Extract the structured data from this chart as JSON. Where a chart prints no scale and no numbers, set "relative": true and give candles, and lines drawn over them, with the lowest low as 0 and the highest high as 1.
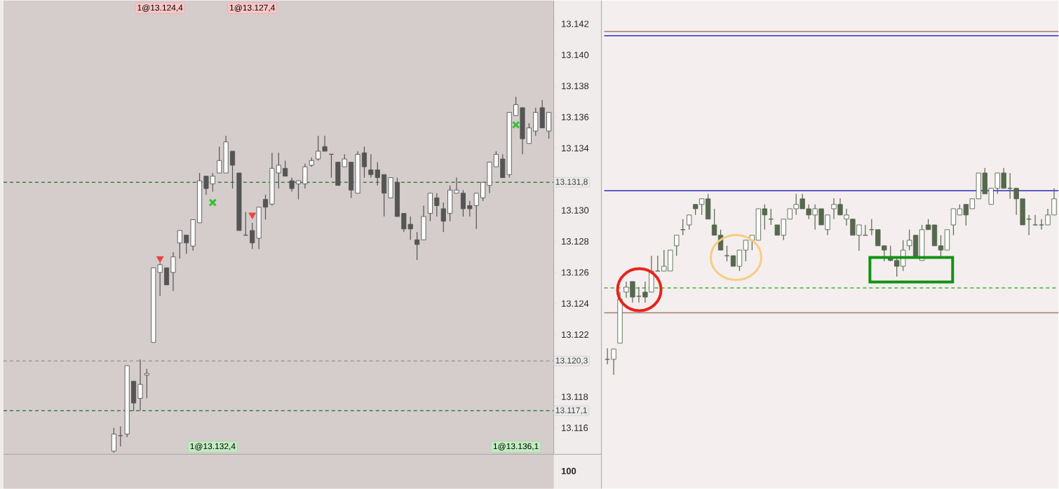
{
  "chart_data": [
    {
      "type": "candlestick",
      "color": "#555555",
      "categories": [
        null,
        null,
        null,
        null,
        null,
        null,
        null,
        null,
        null,
        null,
        null,
        null,
        null,
        null,
        null,
        null,
        null,
        null,
        null,
        null,
        null,
        null,
        null,
        null,
        null,
        null,
        null,
        null,
        null,
        null,
        null,
        null,
        null,
        null,
        null,
        null,
        null,
        null,
        null,
        null,
        null,
        null,
        null,
        null,
        null,
        null,
        null,
        null,
        null,
        null,
        null,
        null,
        null,
        null,
        null,
        null,
        null,
        null,
        null,
        null,
        null,
        null,
        null,
        null,
        null,
        null,
        null
      ],
      "ohlc": [
        [
          13114.5,
          13116.0,
          13114.4,
          13115.6
        ],
        [
          13115.5,
          13116.1,
          13114.8,
          13115.5
        ],
        [
          13115.6,
          13120.0,
          13115.4,
          13120.0
        ],
        [
          13119.0,
          13119.0,
          13117.1,
          13117.6
        ],
        [
          13117.9,
          13120.4,
          13117.1,
          13118.8
        ],
        [
          13119.4,
          13119.8,
          13117.9,
          13119.5
        ],
        [
          13121.5,
          13126.3,
          13121.5,
          13126.3
        ],
        [
          13126.0,
          13126.6,
          13124.5,
          13126.5
        ],
        [
          13126.3,
          13126.3,
          13125.2,
          13125.2
        ],
        [
          13126.0,
          13127.3,
          13124.8,
          13127.0
        ],
        [
          13127.9,
          13128.7,
          13126.9,
          13128.7
        ],
        [
          13128.4,
          13128.4,
          13127.2,
          13127.9
        ],
        [
          13127.7,
          13129.4,
          13127.4,
          13129.4
        ],
        [
          13129.2,
          13132.4,
          13129.2,
          13131.9
        ],
        [
          13132.2,
          13132.2,
          13131.0,
          13131.4
        ],
        [
          13131.7,
          13132.4,
          13131.2,
          13132.2
        ],
        [
          13132.4,
          13134.1,
          13132.4,
          13133.2
        ],
        [
          13132.4,
          13134.8,
          13132.4,
          13134.4
        ],
        [
          13133.8,
          13133.8,
          13131.4,
          13132.9
        ],
        [
          13132.4,
          13132.4,
          13128.7,
          13128.7
        ],
        [
          13128.4,
          13129.9,
          13128.4,
          13128.4
        ],
        [
          13128.7,
          13129.2,
          13127.5,
          13127.9
        ],
        [
          13128.2,
          13130.2,
          13127.5,
          13130.2
        ],
        [
          13130.7,
          13131.0,
          13129.4,
          13130.2
        ],
        [
          13130.4,
          13133.7,
          13130.3,
          13132.7
        ],
        [
          13132.4,
          13133.7,
          13131.4,
          13132.9
        ],
        [
          13132.7,
          13133.2,
          13132.2,
          13132.2
        ],
        [
          13131.9,
          13132.1,
          13131.2,
          13131.4
        ],
        [
          13131.7,
          13131.9,
          13130.7,
          13131.9
        ],
        [
          13131.7,
          13133.0,
          13131.4,
          13132.8
        ],
        [
          13132.9,
          13133.4,
          13132.8,
          13133.2
        ],
        [
          13133.3,
          13134.8,
          13133.2,
          13133.8
        ],
        [
          13134.1,
          13134.8,
          13133.8,
          13133.8
        ],
        [
          13133.6,
          13133.6,
          13132.1,
          13133.6
        ],
        [
          13133.1,
          13133.1,
          13131.6,
          13131.6
        ],
        [
          13132.8,
          13133.6,
          13132.8,
          13133.3
        ],
        [
          13133.1,
          13133.1,
          13130.8,
          13131.3
        ],
        [
          13131.1,
          13133.8,
          13131.1,
          13133.6
        ],
        [
          13133.7,
          13134.1,
          13132.1,
          13132.8
        ],
        [
          13132.6,
          13133.6,
          13132.1,
          13132.3
        ],
        [
          13132.6,
          13133.1,
          13131.6,
          13132.1
        ],
        [
          13132.3,
          13132.3,
          13129.6,
          13131.1
        ],
        [
          13130.8,
          13132.1,
          13130.8,
          13132.1
        ],
        [
          13131.8,
          13132.1,
          13129.6,
          13129.6
        ],
        [
          13129.8,
          13129.8,
          13128.6,
          13128.8
        ],
        [
          13129.1,
          13129.6,
          13128.1,
          13128.8
        ],
        [
          13128.1,
          13128.6,
          13126.8,
          13127.8
        ],
        [
          13128.1,
          13130.3,
          13128.1,
          13129.6
        ],
        [
          13129.8,
          13131.1,
          13129.3,
          13131.1
        ],
        [
          13130.8,
          13131.1,
          13129.6,
          13130.3
        ],
        [
          13130.1,
          13130.5,
          13128.6,
          13129.3
        ],
        [
          13129.8,
          13131.6,
          13129.3,
          13131.3
        ],
        [
          13131.1,
          13132.1,
          13131.1,
          13131.3
        ],
        [
          13131.1,
          13131.3,
          13129.6,
          13130.1
        ],
        [
          13130.3,
          13130.6,
          13129.6,
          13130.1
        ],
        [
          13130.3,
          13131.1,
          13128.8,
          13131.1
        ],
        [
          13130.8,
          13131.8,
          13130.6,
          13131.8
        ],
        [
          13131.6,
          13133.1,
          13131.1,
          13133.1
        ],
        [
          13132.8,
          13133.8,
          13132.8,
          13133.6
        ],
        [
          13133.3,
          13133.6,
          13132.1,
          13132.1
        ],
        [
          13132.3,
          13136.3,
          13132.1,
          13136.3
        ],
        [
          13136.1,
          13137.3,
          13136.1,
          13136.8
        ],
        [
          13136.6,
          13136.6,
          13133.6,
          13134.6
        ],
        [
          13134.3,
          13135.6,
          13134.3,
          13135.3
        ],
        [
          13135.1,
          13136.6,
          13134.8,
          13136.3
        ],
        [
          13136.6,
          13137.1,
          13135.3,
          13135.3
        ],
        [
          13135.1,
          13136.3,
          13134.6,
          13136.3
        ]
      ],
      "series": [
        {
          "type": "scatter",
          "marker": "triangle",
          "color": "#e84545",
          "values": [
            null,
            null,
            null,
            null,
            null,
            null,
            null,
            13126.9,
            null,
            null,
            null,
            null,
            null,
            null,
            null,
            null,
            null,
            null,
            null,
            null,
            null,
            13129.7,
            null,
            null,
            null,
            null,
            null,
            null,
            null,
            null,
            null,
            null,
            null,
            null,
            null,
            null,
            null,
            null,
            null,
            null,
            null,
            null,
            null,
            null,
            null,
            null,
            null,
            null,
            null,
            null,
            null,
            null,
            null,
            null,
            null,
            null,
            null,
            null,
            null,
            null,
            null,
            null,
            null,
            null,
            null,
            null,
            null
          ]
        },
        {
          "type": "scatter",
          "marker": "cross",
          "color": "#33c233",
          "values": [
            null,
            null,
            null,
            null,
            null,
            null,
            null,
            null,
            null,
            null,
            null,
            null,
            null,
            null,
            null,
            13130.5,
            null,
            null,
            null,
            null,
            null,
            null,
            null,
            null,
            null,
            null,
            null,
            null,
            null,
            null,
            null,
            null,
            null,
            null,
            null,
            null,
            null,
            null,
            null,
            null,
            null,
            null,
            null,
            null,
            null,
            null,
            null,
            null,
            null,
            null,
            null,
            null,
            null,
            null,
            null,
            null,
            null,
            null,
            null,
            null,
            null,
            13135.5,
            null,
            null,
            null,
            null,
            null
          ]
        }
      ],
      "ylim": [
        13114.3,
        13143.5
      ],
      "yticks": [
        {
          "value": 13116,
          "label": "13.116"
        },
        {
          "value": 13118,
          "label": "13.118"
        },
        {
          "value": 13120,
          "label": null
        },
        {
          "value": 13122,
          "label": "13.122"
        },
        {
          "value": 13124,
          "label": "13.124"
        },
        {
          "value": 13126,
          "label": "13.126"
        },
        {
          "value": 13128,
          "label": "13.128"
        },
        {
          "value": 13130,
          "label": "13.130"
        },
        {
          "value": 13132,
          "label": null
        },
        {
          "value": 13134,
          "label": "13.134"
        },
        {
          "value": 13136,
          "label": "13.136"
        },
        {
          "value": 13138,
          "label": "13.138"
        },
        {
          "value": 13140,
          "label": "13.140"
        },
        {
          "value": 13142,
          "label": "13.142"
        }
      ],
      "ref_lines": [
        {
          "axis": "y",
          "value": 13131.8,
          "label": "13.131,8",
          "color": "#3a803a",
          "line_style": "dashed"
        },
        {
          "axis": "y",
          "value": 13120.3,
          "label": "13.120,3",
          "color": "#a09a9a",
          "line_style": "dashed"
        },
        {
          "axis": "y",
          "value": 13117.1,
          "label": "13.117,1",
          "color": "#3a803a",
          "line_style": "dashed"
        }
      ],
      "annotations": [
        "1@13.124,4",
        "1@13.127,4",
        "1@13.132,4",
        "1@13.136,1",
        "100"
      ]
    },
    {
      "type": "candlestick",
      "color": "#56684e",
      "relative": true,
      "categories": [
        null,
        null,
        null,
        null,
        null,
        null,
        null,
        null,
        null,
        null,
        null,
        null,
        null,
        null,
        null,
        null,
        null,
        null,
        null,
        null,
        null,
        null,
        null,
        null,
        null,
        null,
        null,
        null,
        null,
        null,
        null,
        null,
        null,
        null,
        null,
        null,
        null,
        null,
        null,
        null,
        null,
        null,
        null,
        null,
        null,
        null,
        null,
        null,
        null,
        null,
        null,
        null,
        null,
        null,
        null,
        null,
        null,
        null,
        null,
        null,
        null,
        null,
        null,
        null,
        null,
        null,
        null,
        null,
        null,
        null,
        null,
        null
      ],
      "ohlc": [
        [
          0.075,
          0.129,
          0.051,
          0.075
        ],
        [
          0.075,
          0.125,
          0,
          0.125
        ],
        [
          0.153,
          0.4,
          0.153,
          0.366
        ],
        [
          0.4,
          0.451,
          0.373,
          0.424
        ],
        [
          0.451,
          0.451,
          0.349,
          0.376
        ],
        [
          0.38,
          0.424,
          0.349,
          0.38
        ],
        [
          0.4,
          0.451,
          0.349,
          0.376
        ],
        [
          0.4,
          0.576,
          0.4,
          0.502
        ],
        [
          0.502,
          0.576,
          0.502,
          0.502
        ],
        [
          0.502,
          0.603,
          0.502,
          0.525
        ],
        [
          0.502,
          0.603,
          0.502,
          0.603
        ],
        [
          0.624,
          0.675,
          0.576,
          0.675
        ],
        [
          0.702,
          0.753,
          0.675,
          0.702
        ],
        [
          0.725,
          0.773,
          0.702,
          0.773
        ],
        [
          0.824,
          0.824,
          0.773,
          0.803
        ],
        [
          0.824,
          0.851,
          0.773,
          0.851
        ],
        [
          0.851,
          0.875,
          0.753,
          0.753
        ],
        [
          0.725,
          0.803,
          0.675,
          0.675
        ],
        [
          0.675,
          0.702,
          0.603,
          0.603
        ],
        [
          0.576,
          0.624,
          0.549,
          0.576
        ],
        [
          0.576,
          0.576,
          0.525,
          0.525
        ],
        [
          0.525,
          0.603,
          0.502,
          0.603
        ],
        [
          0.603,
          0.651,
          0.549,
          0.651
        ],
        [
          0.651,
          0.675,
          0.603,
          0.675
        ],
        [
          0.651,
          0.803,
          0.651,
          0.803
        ],
        [
          0.803,
          0.824,
          0.702,
          0.773
        ],
        [
          0.753,
          0.803,
          0.725,
          0.753
        ],
        [
          0.725,
          0.725,
          0.675,
          0.675
        ],
        [
          0.675,
          0.753,
          0.651,
          0.753
        ],
        [
          0.753,
          0.803,
          0.753,
          0.803
        ],
        [
          0.803,
          0.875,
          0.773,
          0.824
        ],
        [
          0.851,
          0.875,
          0.803,
          0.803
        ],
        [
          0.803,
          0.824,
          0.753,
          0.773
        ],
        [
          0.773,
          0.824,
          0.702,
          0.803
        ],
        [
          0.803,
          0.803,
          0.725,
          0.725
        ],
        [
          0.702,
          0.773,
          0.675,
          0.773
        ],
        [
          0.803,
          0.854,
          0.753,
          0.824
        ],
        [
          0.824,
          0.854,
          0.773,
          0.773
        ],
        [
          0.753,
          0.803,
          0.722,
          0.773
        ],
        [
          0.753,
          0.753,
          0.675,
          0.675
        ],
        [
          0.675,
          0.725,
          0.6,
          0.725
        ],
        [
          0.675,
          0.725,
          0.675,
          0.675
        ],
        [
          0.702,
          0.753,
          0.675,
          0.702
        ],
        [
          0.702,
          0.702,
          0.624,
          0.624
        ],
        [
          0.624,
          0.624,
          0.549,
          0.603
        ],
        [
          0.569,
          0.624,
          0.549,
          0.553
        ],
        [
          0.553,
          0.569,
          0.475,
          0.525
        ],
        [
          0.525,
          0.651,
          0.502,
          0.603
        ],
        [
          0.624,
          0.702,
          0.603,
          0.651
        ],
        [
          0.675,
          0.675,
          0.569,
          0.569
        ],
        [
          0.553,
          0.725,
          0.553,
          0.702
        ],
        [
          0.725,
          0.753,
          0.702,
          0.702
        ],
        [
          0.725,
          0.725,
          0.624,
          0.624
        ],
        [
          0.624,
          0.675,
          0.569,
          0.603
        ],
        [
          0.603,
          0.702,
          0.603,
          0.702
        ],
        [
          0.725,
          0.803,
          0.675,
          0.803
        ],
        [
          0.773,
          0.824,
          0.773,
          0.803
        ],
        [
          0.824,
          0.824,
          0.722,
          0.773
        ],
        [
          0.803,
          0.851,
          0.803,
          0.851
        ],
        [
          0.851,
          0.976,
          0.851,
          0.976
        ],
        [
          0.976,
          1,
          0.875,
          0.875
        ],
        [
          0.824,
          0.902,
          0.824,
          0.902
        ],
        [
          0.902,
          0.976,
          0.875,
          0.976
        ],
        [
          0.976,
          1,
          0.902,
          0.902
        ],
        [
          0.902,
          0.976,
          0.851,
          0.902
        ],
        [
          0.902,
          0.902,
          0.773,
          0.851
        ],
        [
          0.851,
          0.851,
          0.725,
          0.725
        ],
        [
          0.753,
          0.773,
          0.675,
          0.753
        ],
        [
          0.725,
          0.773,
          0.722,
          0.725
        ],
        [
          0.725,
          0.753,
          0.702,
          0.725
        ],
        [
          0.725,
          0.803,
          0.725,
          0.773
        ],
        [
          0.773,
          0.902,
          0.773,
          0.851
        ]
      ],
      "ref_lines": [
        {
          "axis": "y",
          "value": 1.66,
          "color": "#a07868",
          "line_style": "solid"
        },
        {
          "axis": "y",
          "value": 1.64,
          "color": "#2b2bc0",
          "line_style": "solid"
        },
        {
          "axis": "y",
          "value": 0.89,
          "color": "#2b2bc0",
          "line_style": "solid"
        },
        {
          "axis": "y",
          "value": 0.42,
          "color": "#33bb33",
          "line_style": "dashed"
        },
        {
          "axis": "y",
          "value": 0.3,
          "color": "#a07868",
          "line_style": "solid"
        }
      ]
    }
  ]
}
